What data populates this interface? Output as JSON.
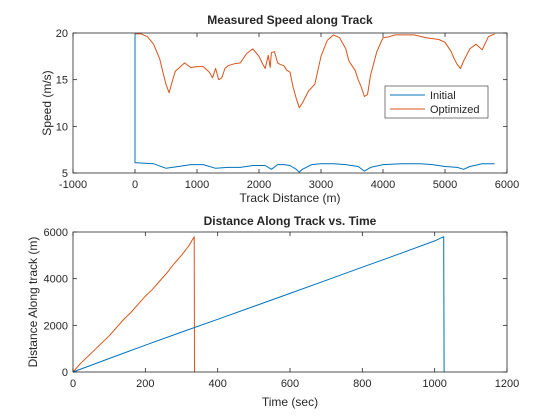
{
  "chart_data": [
    {
      "type": "line",
      "title": "Measured Speed along Track",
      "xlabel": "Track Distance (m)",
      "ylabel": "Speed (m/s)",
      "xlim": [
        -1000,
        6000
      ],
      "ylim": [
        5,
        20
      ],
      "xticks": [
        -1000,
        0,
        1000,
        2000,
        3000,
        4000,
        5000,
        6000
      ],
      "yticks": [
        5,
        10,
        15,
        20
      ],
      "grid": false,
      "legend_position": "right",
      "series": [
        {
          "name": "Initial",
          "color": "#0072BD",
          "x": [
            0,
            0,
            20,
            300,
            500,
            700,
            900,
            1100,
            1300,
            1500,
            1700,
            1900,
            2100,
            2200,
            2300,
            2400,
            2500,
            2600,
            2650,
            2700,
            2850,
            3000,
            3200,
            3400,
            3600,
            3700,
            3800,
            4000,
            4300,
            4600,
            4800,
            5000,
            5200,
            5300,
            5400,
            5600,
            5800
          ],
          "y": [
            20,
            6.1,
            6.1,
            6.0,
            5.5,
            5.7,
            5.9,
            5.9,
            5.5,
            5.6,
            5.6,
            5.8,
            5.8,
            5.4,
            5.9,
            5.9,
            5.8,
            5.4,
            5.1,
            5.4,
            5.9,
            6.0,
            6.0,
            5.9,
            5.7,
            5.2,
            5.6,
            5.9,
            6.0,
            6.0,
            5.9,
            5.7,
            5.6,
            5.4,
            5.7,
            6.0,
            6.0
          ]
        },
        {
          "name": "Optimized",
          "color": "#D95319",
          "x": [
            0,
            100,
            200,
            300,
            400,
            450,
            500,
            550,
            600,
            650,
            700,
            800,
            900,
            1000,
            1100,
            1200,
            1250,
            1300,
            1350,
            1400,
            1450,
            1500,
            1600,
            1700,
            1800,
            1900,
            2000,
            2050,
            2100,
            2150,
            2180,
            2200,
            2250,
            2300,
            2350,
            2400,
            2450,
            2500,
            2550,
            2600,
            2650,
            2700,
            2800,
            2900,
            3000,
            3100,
            3200,
            3300,
            3400,
            3450,
            3500,
            3550,
            3600,
            3650,
            3700,
            3750,
            3800,
            3900,
            4000,
            4100,
            4200,
            4300,
            4500,
            4700,
            4900,
            5000,
            5100,
            5150,
            5200,
            5250,
            5300,
            5400,
            5500,
            5600,
            5700,
            5800
          ],
          "y": [
            19.9,
            19.9,
            19.6,
            18.8,
            17.2,
            15.8,
            14.5,
            13.6,
            14.8,
            15.9,
            16.2,
            16.8,
            16.3,
            16.4,
            16.4,
            15.8,
            15.2,
            16.2,
            15.0,
            15.2,
            16.2,
            16.5,
            16.7,
            16.8,
            17.8,
            18.3,
            17.5,
            16.8,
            16.2,
            17.6,
            16.3,
            17.9,
            18.0,
            16.8,
            16.6,
            16.5,
            16.0,
            15.8,
            14.2,
            13.0,
            12.0,
            12.5,
            13.8,
            14.5,
            17.5,
            19.2,
            19.8,
            19.5,
            18.3,
            17.0,
            16.5,
            16.0,
            15.0,
            14.2,
            13.2,
            13.4,
            15.5,
            18.0,
            19.5,
            19.6,
            19.8,
            19.8,
            19.8,
            19.5,
            19.3,
            19.0,
            18.0,
            17.2,
            16.6,
            16.2,
            17.0,
            18.3,
            18.8,
            18.2,
            19.6,
            19.9
          ]
        }
      ]
    },
    {
      "type": "line",
      "title": "Distance Along Track vs. Time",
      "xlabel": "Time (sec)",
      "ylabel": "Distance Along track (m)",
      "xlim": [
        0,
        1200
      ],
      "ylim": [
        0,
        6000
      ],
      "xticks": [
        0,
        200,
        400,
        600,
        800,
        1000,
        1200
      ],
      "yticks": [
        0,
        2000,
        4000,
        6000
      ],
      "grid": false,
      "series": [
        {
          "name": "",
          "color": "#D95319",
          "x": [
            0,
            20,
            40,
            60,
            80,
            100,
            120,
            140,
            160,
            180,
            200,
            220,
            240,
            260,
            280,
            300,
            320,
            335,
            336
          ],
          "y": [
            0,
            350,
            650,
            950,
            1250,
            1550,
            1900,
            2250,
            2550,
            2900,
            3250,
            3550,
            3900,
            4250,
            4650,
            5000,
            5400,
            5800,
            0
          ]
        },
        {
          "name": "",
          "color": "#0072BD",
          "x": [
            0,
            100,
            200,
            300,
            400,
            500,
            600,
            700,
            800,
            900,
            1000,
            1025,
            1026
          ],
          "y": [
            0,
            580,
            1150,
            1710,
            2260,
            2810,
            3370,
            3930,
            4490,
            5050,
            5620,
            5800,
            0
          ]
        }
      ]
    }
  ]
}
